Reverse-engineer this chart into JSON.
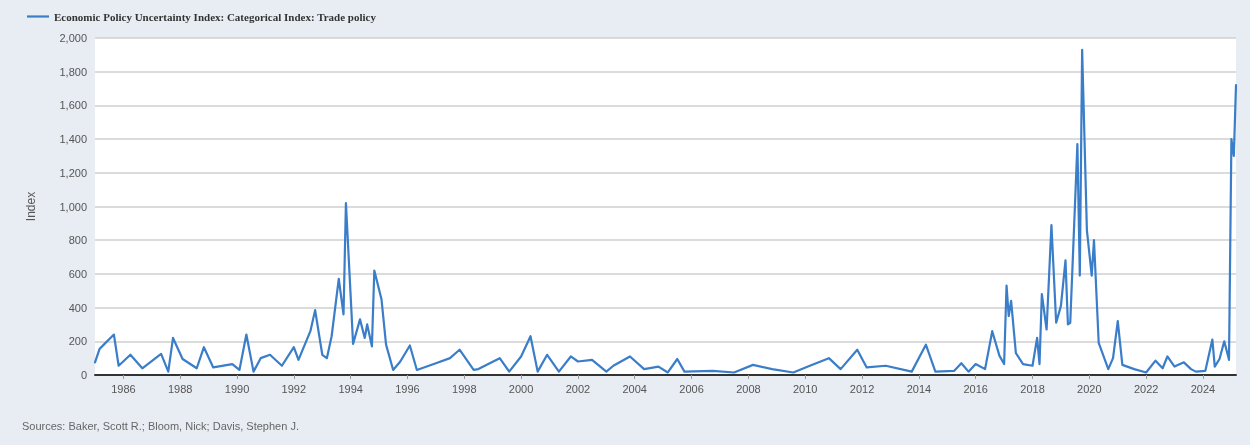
{
  "chart_data": {
    "type": "line",
    "ylabel": "Index",
    "annotations": [
      "Sources: Baker, Scott R.; Bloom, Nick; Davis, Stephen J."
    ],
    "x": [
      "1985-01",
      "1985-03",
      "1985-09",
      "1985-11",
      "1986-04",
      "1986-09",
      "1987-05",
      "1987-08",
      "1987-10",
      "1988-02",
      "1988-08",
      "1988-11",
      "1989-03",
      "1989-11",
      "1990-02",
      "1990-05",
      "1990-08",
      "1990-11",
      "1991-03",
      "1991-08",
      "1992-01",
      "1992-03",
      "1992-08",
      "1992-10",
      "1993-01",
      "1993-03",
      "1993-05",
      "1993-08",
      "1993-10",
      "1993-11",
      "1994-02",
      "1994-05",
      "1994-07",
      "1994-08",
      "1994-10",
      "1994-11",
      "1995-02",
      "1995-04",
      "1995-07",
      "1995-10",
      "1996-02",
      "1996-05",
      "1997-01",
      "1997-07",
      "1997-11",
      "1998-05",
      "1998-07",
      "1999-04",
      "1999-08",
      "2000-01",
      "2000-05",
      "2000-08",
      "2000-12",
      "2001-05",
      "2001-10",
      "2002-01",
      "2002-07",
      "2003-01",
      "2003-04",
      "2003-11",
      "2004-05",
      "2004-11",
      "2005-03",
      "2005-07",
      "2005-10",
      "2006-10",
      "2007-07",
      "2008-03",
      "2008-11",
      "2009-08",
      "2010-03",
      "2010-11",
      "2011-04",
      "2011-11",
      "2012-03",
      "2012-11",
      "2013-10",
      "2014-04",
      "2014-08",
      "2015-04",
      "2015-07",
      "2015-10",
      "2016-01",
      "2016-05",
      "2016-08",
      "2016-11",
      "2017-01",
      "2017-02",
      "2017-03",
      "2017-04",
      "2017-06",
      "2017-09",
      "2018-01",
      "2018-03",
      "2018-04",
      "2018-05",
      "2018-07",
      "2018-09",
      "2018-11",
      "2019-01",
      "2019-03",
      "2019-04",
      "2019-05",
      "2019-08",
      "2019-09",
      "2019-10",
      "2019-12",
      "2020-02",
      "2020-03",
      "2020-05",
      "2020-09",
      "2020-11",
      "2021-01",
      "2021-03",
      "2021-08",
      "2022-01",
      "2022-05",
      "2022-08",
      "2022-10",
      "2023-01",
      "2023-05",
      "2023-08",
      "2023-10",
      "2024-02",
      "2024-05",
      "2024-06",
      "2024-08",
      "2024-10",
      "2024-12",
      "2025-01",
      "2025-02",
      "2025-03"
    ],
    "series": [
      {
        "name": "Economic Policy Uncertainty Index: Categorical Index: Trade policy",
        "color": "#3a7dc9",
        "values": [
          75,
          155,
          240,
          55,
          120,
          40,
          125,
          20,
          220,
          95,
          40,
          165,
          45,
          65,
          30,
          240,
          20,
          100,
          120,
          55,
          165,
          90,
          260,
          385,
          120,
          100,
          230,
          570,
          360,
          1020,
          185,
          330,
          220,
          300,
          170,
          620,
          450,
          180,
          30,
          80,
          175,
          30,
          70,
          100,
          150,
          30,
          35,
          100,
          20,
          110,
          230,
          20,
          120,
          20,
          110,
          80,
          90,
          20,
          55,
          110,
          35,
          50,
          15,
          95,
          20,
          25,
          15,
          60,
          35,
          15,
          55,
          100,
          35,
          150,
          45,
          55,
          20,
          180,
          20,
          25,
          70,
          20,
          65,
          35,
          260,
          115,
          65,
          530,
          350,
          440,
          130,
          65,
          55,
          220,
          65,
          480,
          270,
          890,
          310,
          410,
          680,
          300,
          310,
          1370,
          590,
          1930,
          860,
          590,
          800,
          190,
          35,
          100,
          320,
          60,
          35,
          15,
          85,
          40,
          110,
          50,
          75,
          35,
          20,
          25,
          210,
          50,
          95,
          200,
          90,
          1400,
          1300,
          1720
        ]
      }
    ],
    "xlim": [
      "1985-01",
      "2025-03"
    ],
    "xticks": [
      "1986",
      "1988",
      "1990",
      "1992",
      "1994",
      "1996",
      "1998",
      "2000",
      "2002",
      "2004",
      "2006",
      "2008",
      "2010",
      "2012",
      "2014",
      "2016",
      "2018",
      "2020",
      "2022",
      "2024"
    ],
    "ylim": [
      0,
      2000
    ],
    "yticks": [
      0,
      200,
      400,
      600,
      800,
      {
        "value": 1000,
        "label": "1,000"
      },
      {
        "value": 1200,
        "label": "1,200"
      },
      {
        "value": 1400,
        "label": "1,400"
      },
      {
        "value": 1600,
        "label": "1,600"
      },
      {
        "value": 1800,
        "label": "1,800"
      },
      {
        "value": 2000,
        "label": "2,000"
      }
    ],
    "grid": "y",
    "legend": "top left",
    "marker": "none",
    "line_style": "solid"
  }
}
